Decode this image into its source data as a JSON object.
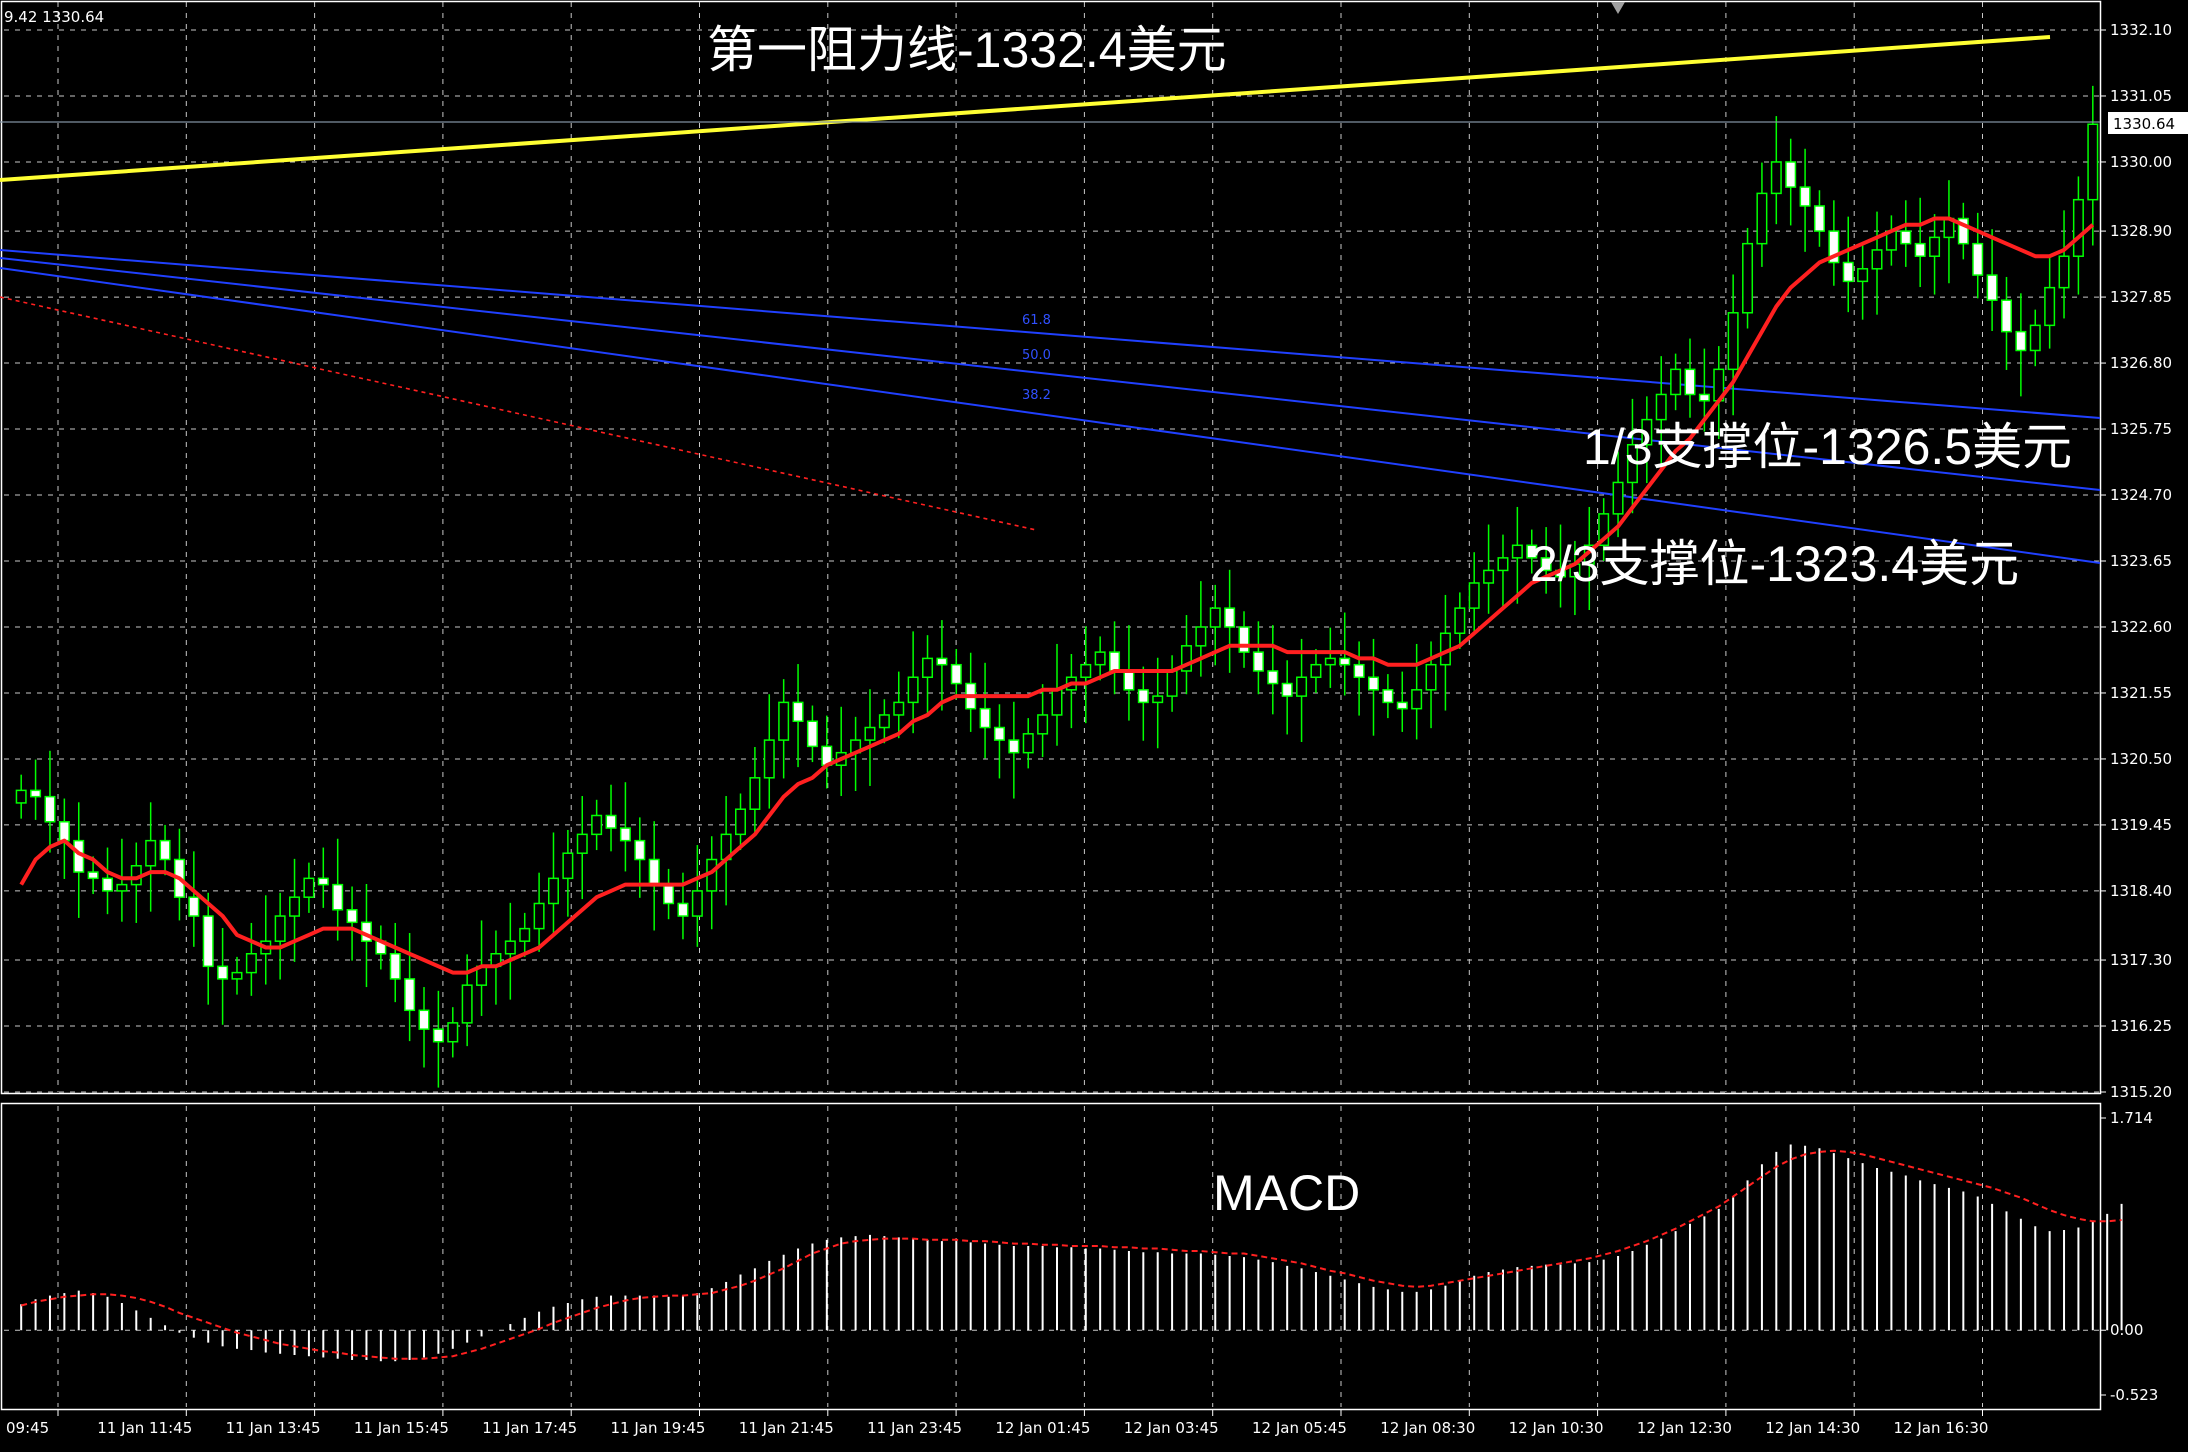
{
  "window": {
    "readout": "9.42 1330.64"
  },
  "annotations": {
    "resistance": "第一阻力线-1332.4美元",
    "support_1_3": "1/3支撑位-1326.5美元",
    "support_2_3": "2/3支撑位-1323.4美元",
    "macd_label": "MACD",
    "fib_levels": [
      "61.8",
      "50.0",
      "38.2"
    ]
  },
  "colors": {
    "background": "#000000",
    "grid": "#ffffff",
    "bull_candle": "#00ff00",
    "bear_candle": "#ffffff",
    "moving_average": "#ff2020",
    "resistance_line": "#ffff33",
    "fib_lines": "#2040ff",
    "dotted_red": "#ff2020",
    "macd_hist": "#ffffff",
    "macd_signal": "#ff2020"
  },
  "chart_data": [
    {
      "type": "candlestick",
      "title": "",
      "last_price": "1330.64",
      "ylim": [
        1315.0,
        1332.6
      ],
      "y_ticks": [
        "1332.10",
        "1331.05",
        "1330.00",
        "1328.90",
        "1327.85",
        "1326.80",
        "1325.75",
        "1324.70",
        "1323.65",
        "1322.60",
        "1321.55",
        "1320.50",
        "1319.45",
        "1318.40",
        "1317.30",
        "1316.25",
        "1315.20"
      ],
      "x_ticks": [
        "11 Jan 09:45",
        "11 Jan 11:45",
        "11 Jan 13:45",
        "11 Jan 15:45",
        "11 Jan 17:45",
        "11 Jan 19:45",
        "11 Jan 21:45",
        "11 Jan 23:45",
        "12 Jan 01:45",
        "12 Jan 03:45",
        "12 Jan 05:45",
        "12 Jan 08:30",
        "12 Jan 10:30",
        "12 Jan 12:30",
        "12 Jan 14:30",
        "12 Jan 16:30"
      ],
      "x_tick_display": [
        "09:45",
        "11 Jan 11:45",
        "11 Jan 13:45",
        "11 Jan 15:45",
        "11 Jan 17:45",
        "11 Jan 19:45",
        "11 Jan 21:45",
        "11 Jan 23:45",
        "12 Jan 01:45",
        "12 Jan 03:45",
        "12 Jan 05:45",
        "12 Jan 08:30",
        "12 Jan 10:30",
        "12 Jan 12:30",
        "12 Jan 14:30",
        "12 Jan 16:30"
      ],
      "close": [
        1320.0,
        1319.9,
        1319.5,
        1319.2,
        1318.7,
        1318.6,
        1318.4,
        1318.5,
        1318.8,
        1319.2,
        1318.9,
        1318.3,
        1318.0,
        1317.2,
        1317.0,
        1317.1,
        1317.4,
        1317.6,
        1318.0,
        1318.3,
        1318.6,
        1318.5,
        1318.1,
        1317.9,
        1317.6,
        1317.4,
        1317.0,
        1316.5,
        1316.2,
        1316.0,
        1316.3,
        1316.9,
        1317.2,
        1317.4,
        1317.6,
        1317.8,
        1318.2,
        1318.6,
        1319.0,
        1319.3,
        1319.6,
        1319.4,
        1319.2,
        1318.9,
        1318.5,
        1318.2,
        1318.0,
        1318.4,
        1318.9,
        1319.3,
        1319.7,
        1320.2,
        1320.8,
        1321.4,
        1321.1,
        1320.7,
        1320.4,
        1320.6,
        1320.8,
        1321.0,
        1321.2,
        1321.4,
        1321.8,
        1322.1,
        1322.0,
        1321.7,
        1321.3,
        1321.0,
        1320.8,
        1320.6,
        1320.9,
        1321.2,
        1321.6,
        1321.8,
        1322.0,
        1322.2,
        1321.9,
        1321.6,
        1321.4,
        1321.5,
        1321.9,
        1322.3,
        1322.6,
        1322.9,
        1322.6,
        1322.2,
        1321.9,
        1321.7,
        1321.5,
        1321.8,
        1322.0,
        1322.1,
        1322.0,
        1321.8,
        1321.6,
        1321.4,
        1321.3,
        1321.6,
        1322.0,
        1322.5,
        1322.9,
        1323.3,
        1323.5,
        1323.7,
        1323.9,
        1323.7,
        1323.5,
        1323.4,
        1323.6,
        1323.9,
        1324.4,
        1324.9,
        1325.5,
        1325.9,
        1326.3,
        1326.7,
        1326.3,
        1326.2,
        1326.7,
        1327.6,
        1328.7,
        1329.5,
        1330.0,
        1329.6,
        1329.3,
        1328.9,
        1328.4,
        1328.1,
        1328.3,
        1328.6,
        1328.9,
        1328.7,
        1328.5,
        1328.8,
        1329.1,
        1328.7,
        1328.2,
        1327.8,
        1327.3,
        1327.0,
        1327.4,
        1328.0,
        1328.5,
        1329.4,
        1330.6
      ],
      "moving_average": [
        1318.5,
        1318.9,
        1319.1,
        1319.2,
        1319.0,
        1318.9,
        1318.7,
        1318.6,
        1318.6,
        1318.7,
        1318.7,
        1318.6,
        1318.4,
        1318.2,
        1318.0,
        1317.7,
        1317.6,
        1317.5,
        1317.5,
        1317.6,
        1317.7,
        1317.8,
        1317.8,
        1317.8,
        1317.7,
        1317.6,
        1317.5,
        1317.4,
        1317.3,
        1317.2,
        1317.1,
        1317.1,
        1317.2,
        1317.2,
        1317.3,
        1317.4,
        1317.5,
        1317.7,
        1317.9,
        1318.1,
        1318.3,
        1318.4,
        1318.5,
        1318.5,
        1318.5,
        1318.5,
        1318.5,
        1318.6,
        1318.7,
        1318.9,
        1319.1,
        1319.3,
        1319.6,
        1319.9,
        1320.1,
        1320.2,
        1320.4,
        1320.5,
        1320.6,
        1320.7,
        1320.8,
        1320.9,
        1321.1,
        1321.2,
        1321.4,
        1321.5,
        1321.5,
        1321.5,
        1321.5,
        1321.5,
        1321.5,
        1321.6,
        1321.6,
        1321.7,
        1321.7,
        1321.8,
        1321.9,
        1321.9,
        1321.9,
        1321.9,
        1321.9,
        1322.0,
        1322.1,
        1322.2,
        1322.3,
        1322.3,
        1322.3,
        1322.3,
        1322.2,
        1322.2,
        1322.2,
        1322.2,
        1322.2,
        1322.1,
        1322.1,
        1322.0,
        1322.0,
        1322.0,
        1322.1,
        1322.2,
        1322.3,
        1322.5,
        1322.7,
        1322.9,
        1323.1,
        1323.3,
        1323.4,
        1323.5,
        1323.6,
        1323.8,
        1324.0,
        1324.2,
        1324.5,
        1324.8,
        1325.1,
        1325.4,
        1325.6,
        1325.9,
        1326.2,
        1326.5,
        1326.9,
        1327.3,
        1327.7,
        1328.0,
        1328.2,
        1328.4,
        1328.5,
        1328.6,
        1328.7,
        1328.8,
        1328.9,
        1329.0,
        1329.0,
        1329.1,
        1329.1,
        1329.0,
        1328.9,
        1328.8,
        1328.7,
        1328.6,
        1328.5,
        1328.5,
        1328.6,
        1328.8,
        1329.0
      ]
    },
    {
      "type": "bar",
      "title": "MACD",
      "ylim": [
        -0.523,
        1.714
      ],
      "y_ticks": [
        "1.714",
        "0.00",
        "-0.523"
      ],
      "values": [
        0.21,
        0.25,
        0.28,
        0.3,
        0.32,
        0.3,
        0.27,
        0.22,
        0.16,
        0.1,
        0.04,
        -0.02,
        -0.06,
        -0.1,
        -0.13,
        -0.15,
        -0.16,
        -0.18,
        -0.19,
        -0.2,
        -0.21,
        -0.22,
        -0.23,
        -0.24,
        -0.24,
        -0.25,
        -0.25,
        -0.24,
        -0.22,
        -0.19,
        -0.15,
        -0.1,
        -0.05,
        0.0,
        0.05,
        0.1,
        0.15,
        0.19,
        0.22,
        0.25,
        0.27,
        0.28,
        0.28,
        0.28,
        0.28,
        0.27,
        0.28,
        0.3,
        0.34,
        0.39,
        0.45,
        0.5,
        0.56,
        0.61,
        0.66,
        0.7,
        0.73,
        0.75,
        0.76,
        0.77,
        0.76,
        0.75,
        0.74,
        0.73,
        0.72,
        0.72,
        0.71,
        0.7,
        0.69,
        0.68,
        0.68,
        0.68,
        0.67,
        0.67,
        0.66,
        0.66,
        0.65,
        0.64,
        0.63,
        0.63,
        0.62,
        0.62,
        0.62,
        0.61,
        0.6,
        0.59,
        0.57,
        0.55,
        0.52,
        0.5,
        0.47,
        0.44,
        0.41,
        0.38,
        0.35,
        0.33,
        0.31,
        0.31,
        0.33,
        0.36,
        0.4,
        0.44,
        0.47,
        0.49,
        0.51,
        0.52,
        0.53,
        0.53,
        0.54,
        0.55,
        0.57,
        0.6,
        0.64,
        0.69,
        0.74,
        0.8,
        0.86,
        0.92,
        0.98,
        1.08,
        1.21,
        1.34,
        1.44,
        1.5,
        1.49,
        1.47,
        1.43,
        1.39,
        1.35,
        1.31,
        1.28,
        1.25,
        1.21,
        1.18,
        1.15,
        1.12,
        1.08,
        1.02,
        0.96,
        0.9,
        0.84,
        0.8,
        0.81,
        0.83,
        0.88,
        0.94,
        1.02
      ],
      "signal": [
        0.2,
        0.23,
        0.25,
        0.27,
        0.28,
        0.29,
        0.29,
        0.28,
        0.26,
        0.23,
        0.19,
        0.14,
        0.1,
        0.06,
        0.02,
        -0.02,
        -0.05,
        -0.08,
        -0.11,
        -0.13,
        -0.15,
        -0.17,
        -0.18,
        -0.2,
        -0.21,
        -0.22,
        -0.23,
        -0.23,
        -0.23,
        -0.22,
        -0.21,
        -0.18,
        -0.15,
        -0.11,
        -0.07,
        -0.03,
        0.01,
        0.06,
        0.1,
        0.14,
        0.18,
        0.21,
        0.24,
        0.26,
        0.27,
        0.28,
        0.28,
        0.29,
        0.3,
        0.33,
        0.36,
        0.4,
        0.45,
        0.5,
        0.56,
        0.62,
        0.66,
        0.7,
        0.72,
        0.73,
        0.74,
        0.74,
        0.74,
        0.73,
        0.73,
        0.73,
        0.72,
        0.72,
        0.71,
        0.7,
        0.7,
        0.69,
        0.69,
        0.68,
        0.68,
        0.68,
        0.67,
        0.67,
        0.66,
        0.66,
        0.65,
        0.64,
        0.64,
        0.63,
        0.62,
        0.62,
        0.6,
        0.58,
        0.56,
        0.54,
        0.51,
        0.48,
        0.46,
        0.43,
        0.4,
        0.38,
        0.36,
        0.35,
        0.36,
        0.38,
        0.4,
        0.42,
        0.44,
        0.46,
        0.48,
        0.5,
        0.52,
        0.54,
        0.56,
        0.58,
        0.61,
        0.64,
        0.68,
        0.72,
        0.77,
        0.82,
        0.88,
        0.94,
        1.0,
        1.08,
        1.16,
        1.24,
        1.32,
        1.38,
        1.42,
        1.44,
        1.45,
        1.44,
        1.42,
        1.39,
        1.36,
        1.33,
        1.3,
        1.27,
        1.24,
        1.21,
        1.18,
        1.15,
        1.11,
        1.07,
        1.02,
        0.97,
        0.93,
        0.9,
        0.88,
        0.88,
        0.89
      ]
    }
  ]
}
